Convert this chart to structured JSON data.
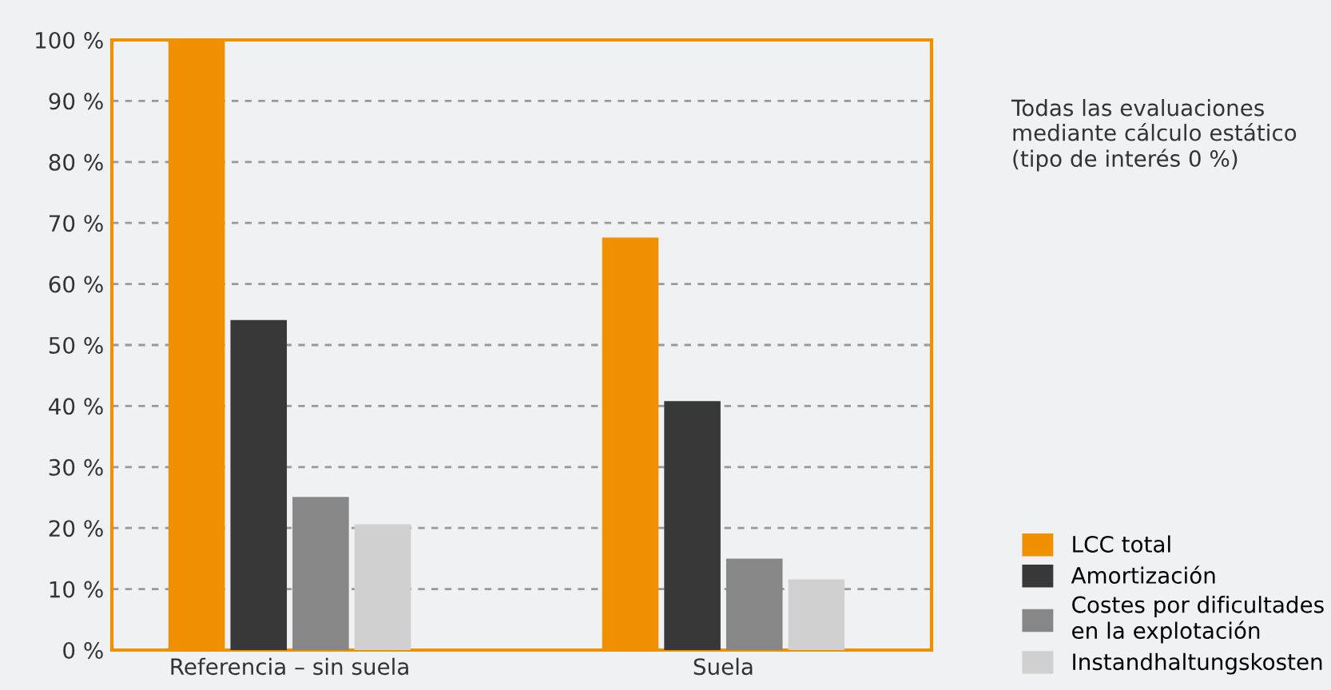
{
  "chart_data": {
    "type": "bar",
    "categories": [
      "Referencia – sin suela",
      "Suela"
    ],
    "series": [
      {
        "name": "LCC total",
        "color": "#f09000",
        "values": [
          100,
          67.6
        ]
      },
      {
        "name": "Amortización",
        "color": "#383838",
        "values": [
          54.1,
          40.8
        ]
      },
      {
        "name": "Costes por dificultades\nen la explotación",
        "color": "#878787",
        "values": [
          25.1,
          15.0
        ]
      },
      {
        "name": "Instandhaltungskosten",
        "color": "#d0d0d0",
        "values": [
          20.6,
          11.6
        ]
      }
    ],
    "ylim": [
      0,
      100
    ],
    "yticks": [
      {
        "value": 0,
        "label": "0 %"
      },
      {
        "value": 10,
        "label": "10 %"
      },
      {
        "value": 20,
        "label": "20 %"
      },
      {
        "value": 30,
        "label": "30 %"
      },
      {
        "value": 40,
        "label": "40 %"
      },
      {
        "value": 50,
        "label": "50 %"
      },
      {
        "value": 60,
        "label": "60 %"
      },
      {
        "value": 70,
        "label": "70 %"
      },
      {
        "value": 80,
        "label": "80 %"
      },
      {
        "value": 90,
        "label": "90 %"
      },
      {
        "value": 100,
        "label": "100 %"
      }
    ],
    "grid": "y",
    "legend": "right",
    "annotations": [
      "Todas las evaluaciones\nmediante cálculo estático\n(tipo de interés 0 %)"
    ]
  }
}
